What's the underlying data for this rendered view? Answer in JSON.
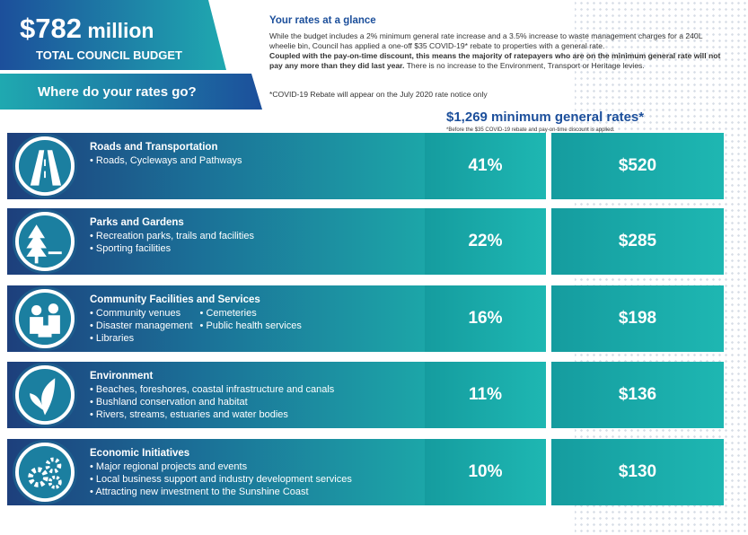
{
  "header": {
    "budget": "$782",
    "budget_unit": "million",
    "budget_caption": "TOTAL COUNCIL BUDGET",
    "question": "Where do your rates go?"
  },
  "glance": {
    "title": "Your rates at a glance",
    "paragraph_1": "While the budget includes a 2% minimum general rate increase and a 3.5% increase to waste management charges for a 240L wheelie bin, Council has applied a one-off $35 COVID-19* rebate to properties with a general rate.",
    "paragraph_2_bold": "Coupled with the pay-on-time discount, this means the majority of ratepayers who are on the minimum general rate will not pay any more than they did last year.",
    "paragraph_2": "There is no increase to the Environment, Transport or Heritage levies.",
    "note": "*COVID-19 Rebate will appear on the July 2020 rate notice only"
  },
  "minimum": {
    "title": "$1,269 minimum general rates*",
    "footnote": "*Before the $35 COVID-19 rebate and pay-on-time discount is applied."
  },
  "rows": [
    {
      "name": "Roads and Transportation",
      "bullets": [
        [
          "Roads, Cycleways and Pathways"
        ]
      ],
      "percent": "41%",
      "amount": "$520"
    },
    {
      "name": "Parks and Gardens",
      "bullets": [
        [
          "Recreation parks, trails and facilities",
          "Sporting facilities"
        ]
      ],
      "percent": "22%",
      "amount": "$285"
    },
    {
      "name": "Community Facilities and Services",
      "bullets": [
        [
          "Community venues",
          "Disaster management",
          "Libraries"
        ],
        [
          "Cemeteries",
          "Public health services"
        ]
      ],
      "percent": "16%",
      "amount": "$198"
    },
    {
      "name": "Environment",
      "bullets": [
        [
          "Beaches, foreshores, coastal infrastructure and canals",
          "Bushland conservation and habitat",
          "Rivers, streams, estuaries and water bodies"
        ]
      ],
      "percent": "11%",
      "amount": "$136"
    },
    {
      "name": "Economic Initiatives",
      "bullets": [
        [
          "Major regional projects and events",
          "Local business support and industry development services",
          "Attracting new investment to the Sunshine Coast"
        ]
      ],
      "percent": "10%",
      "amount": "$130"
    }
  ]
}
